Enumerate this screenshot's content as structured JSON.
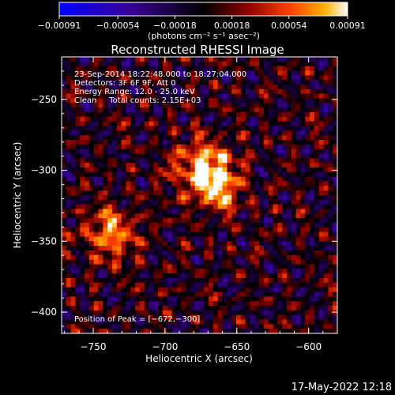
{
  "chart_data": {
    "type": "heatmap",
    "title": "Reconstructed RHESSI Image",
    "xlabel": "Heliocentric X (arcsec)",
    "ylabel": "Heliocentric Y (arcsec)",
    "xlim": [
      -772,
      -580
    ],
    "ylim": [
      -415,
      -220
    ],
    "x_ticks": [
      -750,
      -700,
      -650,
      -600
    ],
    "x_tick_labels": [
      "−750",
      "−700",
      "−650",
      "−600"
    ],
    "y_ticks": [
      -250,
      -300,
      -350,
      -400
    ],
    "y_tick_labels": [
      "−250",
      "−300",
      "−350",
      "−400"
    ],
    "colorbar": {
      "range": [
        -0.00091,
        0.00091
      ],
      "ticks": [
        -0.00091,
        -0.00054,
        -0.00018,
        0.00018,
        0.00054,
        0.00091
      ],
      "tick_labels": [
        "−0.00091",
        "−0.00054",
        "−0.00018",
        "0.00018",
        "0.00054",
        "0.00091"
      ],
      "unit_label": "(photons cm⁻² s⁻¹ asec⁻²)"
    },
    "sources": [
      {
        "x": -672,
        "y": -300,
        "amplitude": 0.00091,
        "sigma": 14
      },
      {
        "x": -738,
        "y": -345,
        "amplitude": 0.00066,
        "sigma": 13
      },
      {
        "x": -660,
        "y": -315,
        "amplitude": 0.00045,
        "sigma": 10
      }
    ],
    "annotations": [
      "23-Sep-2014 18:22:48.000 to 18:27:04.000",
      "Detectors: 3F 6F 9F, Att 0",
      "Energy Range: 12.0 - 25.0 keV",
      "Clean     Total counts: 2.15E+03"
    ],
    "peak_label": "Position of Peak = [−672,−300]",
    "colors": {
      "low": "#0000ff",
      "mid": "#000000",
      "high": "#ffffff",
      "hot": "#ff5000"
    }
  },
  "footer": {
    "timestamp": "17-May-2022 12:18"
  }
}
